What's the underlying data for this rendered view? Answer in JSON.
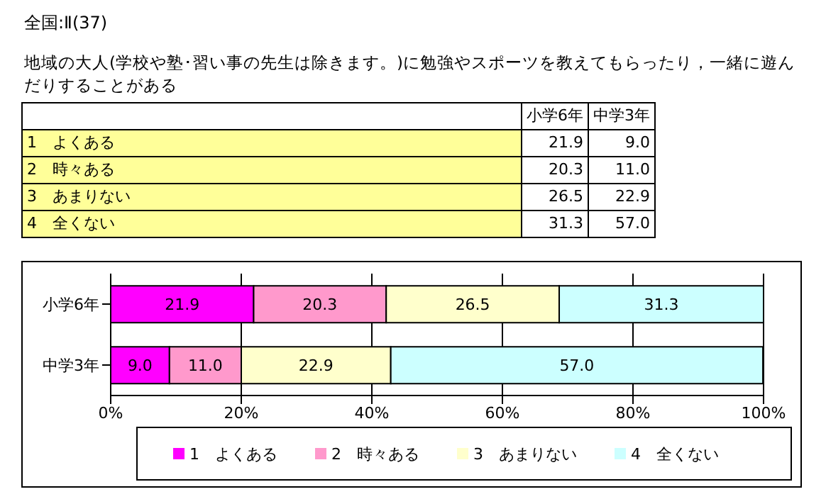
{
  "chart_data": {
    "type": "bar",
    "orientation": "horizontal",
    "stacked": true,
    "title": "全国:Ⅱ(37)",
    "subtitle": "地域の大人(学校や塾･習い事の先生は除きます。)に勉強やスポーツを教えてもらったり，一緒に遊んだりすることがある",
    "categories": [
      "小学6年",
      "中学3年"
    ],
    "series": [
      {
        "name": "1　よくある",
        "color": "#ff00ff",
        "values": [
          21.9,
          9.0
        ],
        "value_labels": [
          "21.9",
          "9.0"
        ]
      },
      {
        "name": "2　時々ある",
        "color": "#ff99cc",
        "values": [
          20.3,
          11.0
        ],
        "value_labels": [
          "20.3",
          "11.0"
        ]
      },
      {
        "name": "3　あまりない",
        "color": "#ffffcc",
        "values": [
          26.5,
          22.9
        ],
        "value_labels": [
          "26.5",
          "22.9"
        ]
      },
      {
        "name": "4　全くない",
        "color": "#ccffff",
        "values": [
          31.3,
          57.0
        ],
        "value_labels": [
          "31.3",
          "57.0"
        ]
      }
    ],
    "xlim": [
      0,
      100
    ],
    "xticks": [
      {
        "value": 0,
        "label": "0%"
      },
      {
        "value": 20,
        "label": "20%"
      },
      {
        "value": 40,
        "label": "40%"
      },
      {
        "value": 60,
        "label": "60%"
      },
      {
        "value": 80,
        "label": "80%"
      },
      {
        "value": 100,
        "label": "100%"
      }
    ],
    "grid": "x",
    "legend": "bottom"
  }
}
